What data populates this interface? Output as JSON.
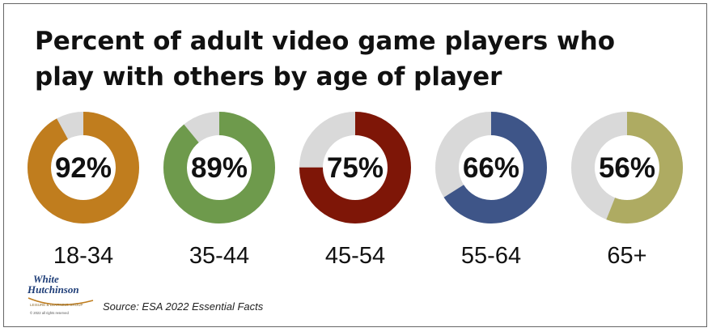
{
  "chart_data": {
    "type": "pie",
    "subtype": "donut",
    "title": "Percent of adult video game players who play with others by age of player",
    "categories": [
      "18-34",
      "35-44",
      "45-54",
      "55-64",
      "65+"
    ],
    "values": [
      92,
      89,
      75,
      66,
      56
    ],
    "value_labels": [
      "92%",
      "89%",
      "75%",
      "66%",
      "56%"
    ],
    "unit": "%",
    "colors": [
      "#C07D1E",
      "#6E9A4C",
      "#7E1607",
      "#3E5588",
      "#AEAB62"
    ],
    "remainder_color": "#D9D9D9",
    "source": "Source: ESA 2022 Essential Facts"
  },
  "logo": {
    "line1": "White",
    "line2": "Hutchinson",
    "tagline": "LEISURE & LEARNING GROUP",
    "copyright": "© 2022 all rights reserved"
  }
}
